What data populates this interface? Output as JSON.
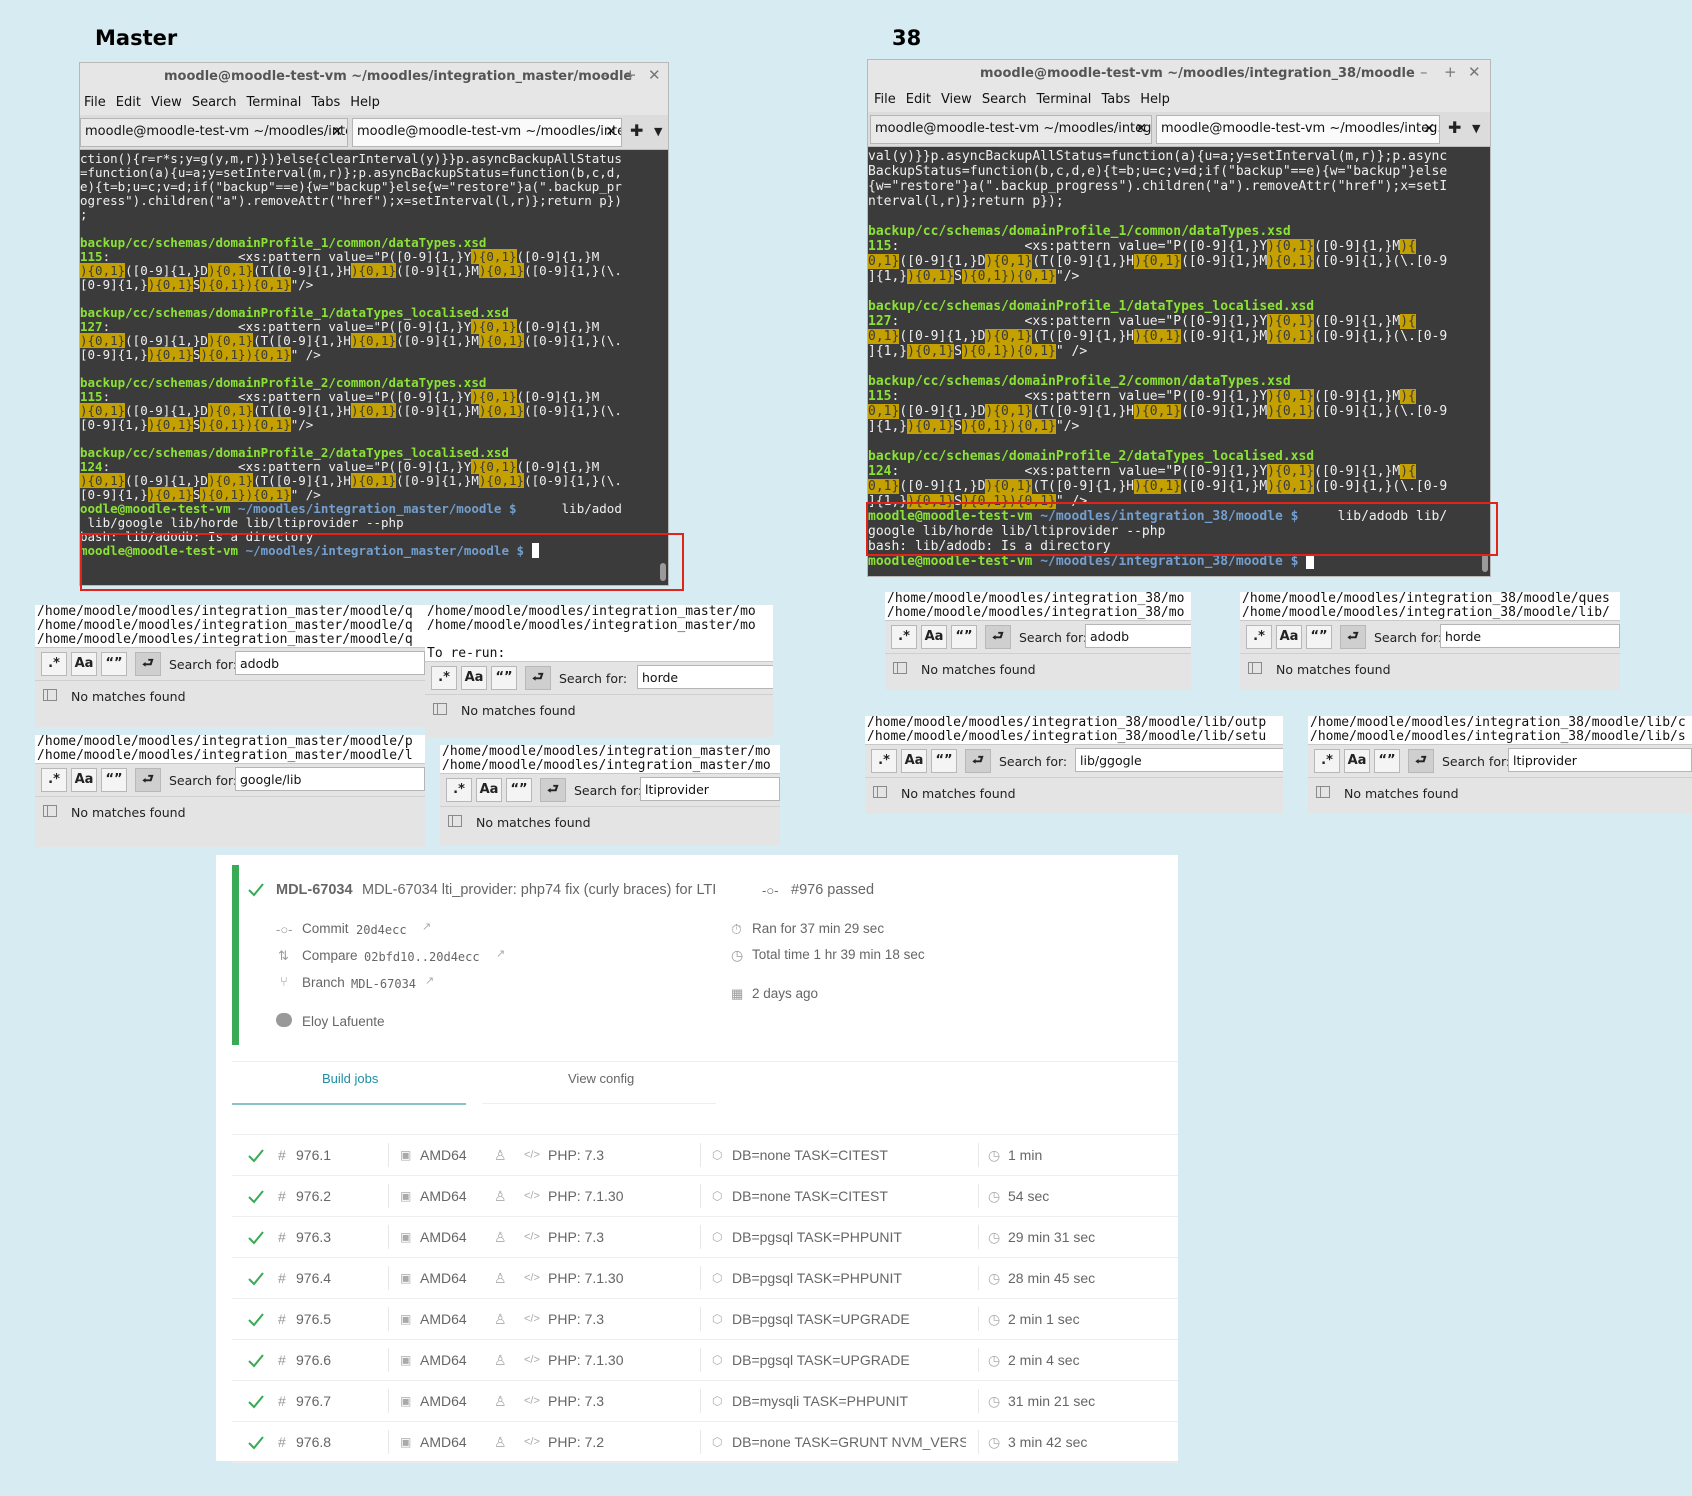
{
  "headings": {
    "master": "Master",
    "v38": "38"
  },
  "term_master": {
    "title": "moodle@moodle-test-vm ~/moodles/integration_master/moodle",
    "menu": [
      "File",
      "Edit",
      "View",
      "Search",
      "Terminal",
      "Tabs",
      "Help"
    ],
    "tabs": [
      "moodle@moodle-test-vm ~/moodles/inte...",
      "moodle@moodle-test-vm ~/moodles/inte..."
    ],
    "prompt_user": "oodle@moodle-test-vm",
    "prompt_cwd": "~/moodles/integration_master/moodle $",
    "cmd1": "lib/adod",
    "cmd2": "lib/google lib/horde lib/ltiprovider --php",
    "error": "bash: lib/adodb: Is a directory",
    "last_prompt_user": "moodle@moodle-test-vm",
    "last_prompt_cwd": "~/moodles/integration_master/moodle $"
  },
  "term_38": {
    "title": "moodle@moodle-test-vm ~/moodles/integration_38/moodle",
    "menu": [
      "File",
      "Edit",
      "View",
      "Search",
      "Terminal",
      "Tabs",
      "Help"
    ],
    "tabs": [
      "moodle@moodle-test-vm ~/moodles/integ...",
      "moodle@moodle-test-vm ~/moodles/integ..."
    ],
    "prompt_user": "moodle@moodle-test-vm",
    "prompt_cwd": "~/moodles/integration_38/moodle $",
    "cmd1": "lib/adodb lib/",
    "cmd2": "google lib/horde lib/ltiprovider --php",
    "error": "bash: lib/adodb: Is a directory",
    "last_prompt_user": "moodle@moodle-test-vm",
    "last_prompt_cwd": "~/moodles/integration_38/moodle $"
  },
  "search": {
    "label": "Search for:",
    "no_matches": "No matches found",
    "buttons": [
      ".*",
      "Aa",
      "“”"
    ],
    "panels": [
      {
        "lines": [
          "/home/moodle/moodles/integration_master/moodle/q",
          "/home/moodle/moodles/integration_master/moodle/q",
          "/home/moodle/moodles/integration_master/moodle/q"
        ],
        "term": "adodb"
      },
      {
        "lines": [
          "/home/moodle/moodles/integration_master/mo",
          "/home/moodle/moodles/integration_master/mo",
          "",
          "To re-run:"
        ],
        "term": "horde"
      },
      {
        "lines": [
          "/home/moodle/moodles/integration_master/moodle/p",
          "/home/moodle/moodles/integration_master/moodle/l"
        ],
        "term": "google/lib"
      },
      {
        "lines": [
          "/home/moodle/moodles/integration_master/mo",
          "/home/moodle/moodles/integration_master/mo"
        ],
        "term": "ltiprovider"
      },
      {
        "lines": [
          "/home/moodle/moodles/integration_38/mo",
          "/home/moodle/moodles/integration_38/mo"
        ],
        "term": "adodb"
      },
      {
        "lines": [
          "/home/moodle/moodles/integration_38/moodle/ques",
          "/home/moodle/moodles/integration_38/moodle/lib/"
        ],
        "term": "horde"
      },
      {
        "lines": [
          "/home/moodle/moodles/integration_38/moodle/lib/outp",
          "/home/moodle/moodles/integration_38/moodle/lib/setu"
        ],
        "term": "lib/ggogle"
      },
      {
        "lines": [
          "/home/moodle/moodles/integration_38/moodle/lib/c",
          "/home/moodle/moodles/integration_38/moodle/lib/s"
        ],
        "term": "ltiprovider"
      }
    ]
  },
  "build": {
    "branch_name": "MDL-67034",
    "title": "MDL-67034 lti_provider: php74 fix (curly braces) for LTI",
    "build_status": "#976 passed",
    "commit_label": "Commit",
    "commit": "20d4ecc",
    "compare_label": "Compare",
    "compare": "02bfd10..20d4ecc",
    "branch_label": "Branch",
    "branch": "MDL-67034",
    "author": "Eloy Lafuente",
    "ran_for": "Ran for 37 min 29 sec",
    "total_time": "Total time 1 hr 39 min 18 sec",
    "when": "2 days ago",
    "tabs": [
      "Build jobs",
      "View config"
    ],
    "colors": {
      "passed": "#39aa56",
      "text": "#666666",
      "tab_underline": "#87c3c9"
    },
    "jobs": [
      {
        "id": "976.1",
        "arch": "AMD64",
        "lang": "PHP: 7.3",
        "env": "DB=none TASK=CITEST",
        "time": "1 min"
      },
      {
        "id": "976.2",
        "arch": "AMD64",
        "lang": "PHP: 7.1.30",
        "env": "DB=none TASK=CITEST",
        "time": "54 sec"
      },
      {
        "id": "976.3",
        "arch": "AMD64",
        "lang": "PHP: 7.3",
        "env": "DB=pgsql TASK=PHPUNIT",
        "time": "29 min 31 sec"
      },
      {
        "id": "976.4",
        "arch": "AMD64",
        "lang": "PHP: 7.1.30",
        "env": "DB=pgsql TASK=PHPUNIT",
        "time": "28 min 45 sec"
      },
      {
        "id": "976.5",
        "arch": "AMD64",
        "lang": "PHP: 7.3",
        "env": "DB=pgsql TASK=UPGRADE",
        "time": "2 min 1 sec"
      },
      {
        "id": "976.6",
        "arch": "AMD64",
        "lang": "PHP: 7.1.30",
        "env": "DB=pgsql TASK=UPGRADE",
        "time": "2 min 4 sec"
      },
      {
        "id": "976.7",
        "arch": "AMD64",
        "lang": "PHP: 7.3",
        "env": "DB=mysqli TASK=PHPUNIT",
        "time": "31 min 21 sec"
      },
      {
        "id": "976.8",
        "arch": "AMD64",
        "lang": "PHP: 7.2",
        "env": "DB=none TASK=GRUNT NVM_VERSION=",
        "time": "3 min 42 sec"
      }
    ]
  }
}
